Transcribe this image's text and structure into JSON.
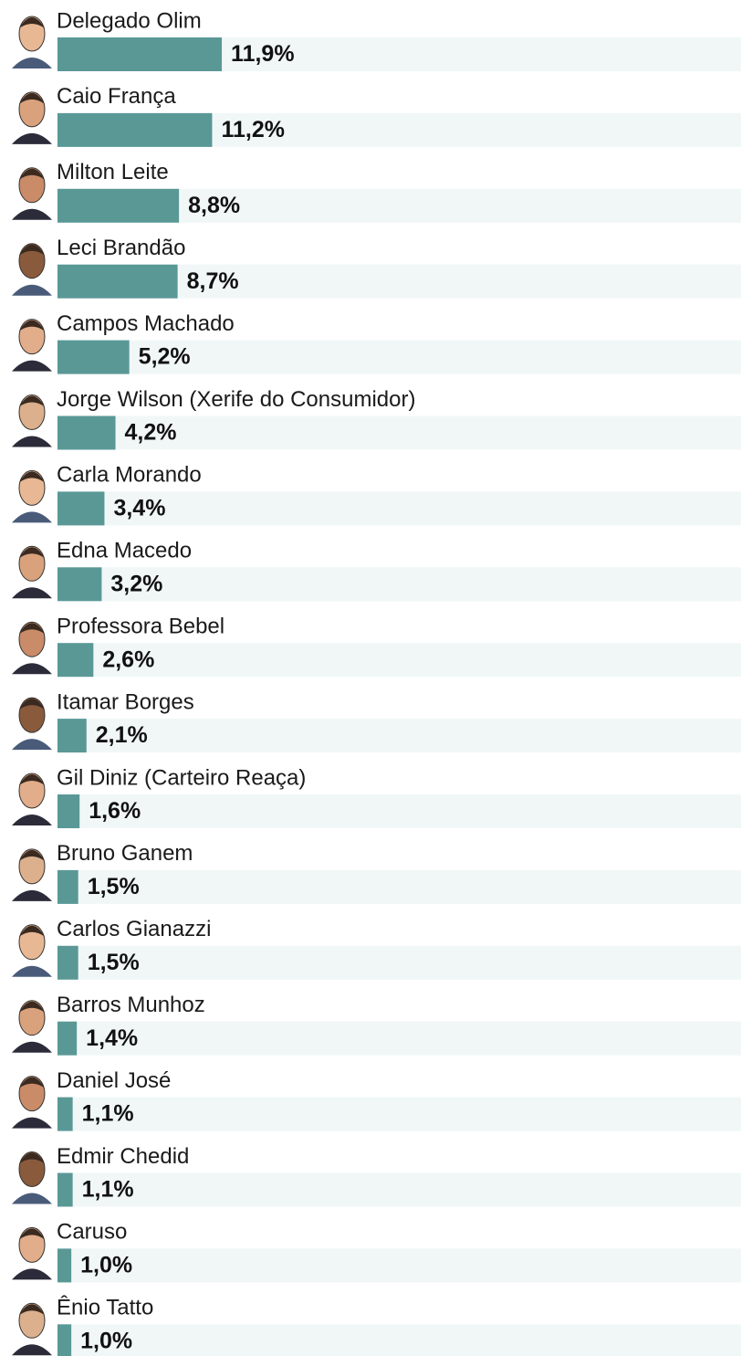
{
  "chart_data": {
    "type": "bar",
    "orientation": "horizontal",
    "categories": [
      "Delegado Olim",
      "Caio França",
      "Milton Leite",
      "Leci Brandão",
      "Campos Machado",
      "Jorge Wilson (Xerife do Consumidor)",
      "Carla Morando",
      "Edna Macedo",
      "Professora Bebel",
      "Itamar Borges",
      "Gil Diniz (Carteiro Reaça)",
      "Bruno Ganem",
      "Carlos Gianazzi",
      "Barros Munhoz",
      "Daniel José",
      "Edmir Chedid",
      "Caruso",
      "Ênio Tatto"
    ],
    "values": [
      11.9,
      11.2,
      8.8,
      8.7,
      5.2,
      4.2,
      3.4,
      3.2,
      2.6,
      2.1,
      1.6,
      1.5,
      1.5,
      1.4,
      1.1,
      1.1,
      1.0,
      1.0
    ],
    "value_labels": [
      "11,9%",
      "11,2%",
      "8,8%",
      "8,7%",
      "5,2%",
      "4,2%",
      "3,4%",
      "3,2%",
      "2,6%",
      "2,1%",
      "1,6%",
      "1,5%",
      "1,5%",
      "1,4%",
      "1,1%",
      "1,1%",
      "1,0%",
      "1,0%"
    ],
    "color": "#5a9896"
  }
}
